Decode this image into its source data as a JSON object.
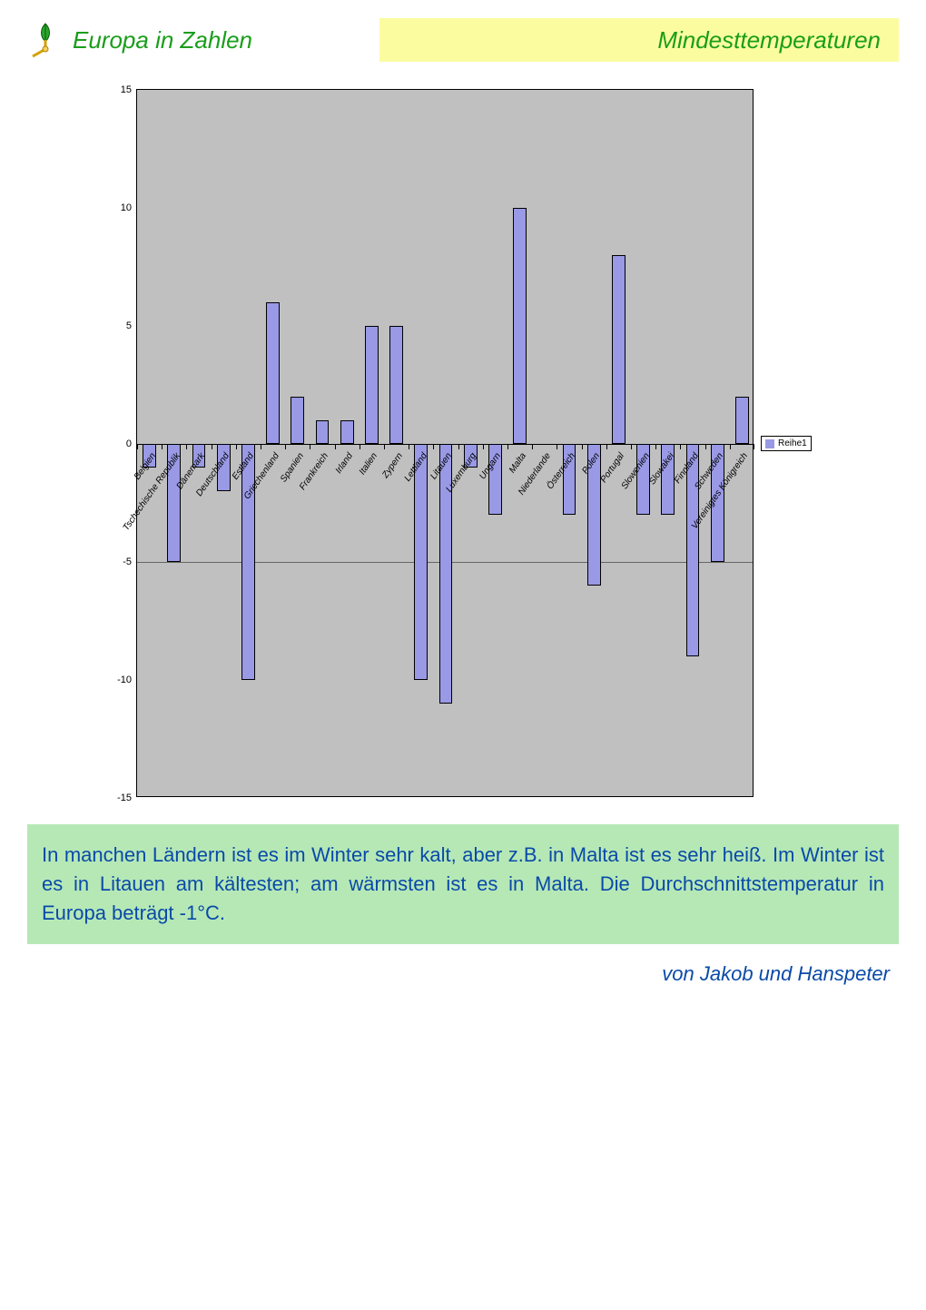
{
  "header": {
    "left_title": "Europa in Zahlen",
    "left_title_color": "#1a9e1a",
    "right_title": "Mindesttemperaturen",
    "right_title_color": "#1a9e1a",
    "right_box_bg": "#fbfca0"
  },
  "chart": {
    "type": "bar",
    "plot_bg": "#c0c0c0",
    "bar_color": "#9999e6",
    "bar_border": "#000000",
    "legend_label": "Reihe1",
    "ylim": [
      -15,
      15
    ],
    "yticks": [
      -15,
      -10,
      -5,
      0,
      5,
      10,
      15
    ],
    "guide_line_value": -5,
    "guide_line_color": "#666666",
    "categories": [
      "Belgien",
      "Tschechische Republik",
      "Dänemark",
      "Deutschland",
      "Estland",
      "Griechenland",
      "Spanien",
      "Frankreich",
      "Irland",
      "Italien",
      "Zypern",
      "Lettland",
      "Litauen",
      "Luxemburg",
      "Ungarn",
      "Malta",
      "Niederlande",
      "Österreich",
      "Polen",
      "Portugal",
      "Slowenien",
      "Slowakei",
      "Finnland",
      "Schweden",
      "Vereinigtes Königreich"
    ],
    "values": [
      -1,
      -5,
      -1,
      -2,
      -10,
      6,
      2,
      1,
      1,
      5,
      5,
      -10,
      -11,
      -1,
      -3,
      10,
      0,
      -3,
      -6,
      8,
      -3,
      -3,
      -9,
      -5,
      2
    ]
  },
  "body_text": {
    "bg": "#b6e8b6",
    "color": "#0a4aa8",
    "text": "In manchen Ländern ist es im Winter sehr kalt, aber z.B. in Malta ist es sehr heiß. Im Winter ist es in Litauen am kältesten; am wärmsten ist es in Malta. Die Durchschnittstemperatur in Europa beträgt -1°C."
  },
  "footer": {
    "text": "von Jakob und Hanspeter",
    "color": "#0a4aa8"
  }
}
